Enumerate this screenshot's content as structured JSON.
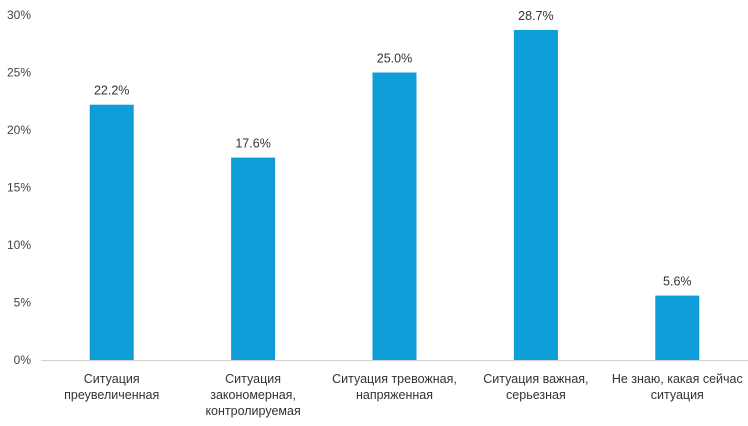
{
  "chart_data": {
    "type": "bar",
    "categories": [
      [
        "Ситуация",
        "преувеличенная"
      ],
      [
        "Ситуация",
        "закономерная,",
        "контролируемая"
      ],
      [
        "Ситуация тревожная,",
        "напряженная"
      ],
      [
        "Ситуация важная,",
        "серьезная"
      ],
      [
        "Не знаю, какая сейчас",
        "ситуация"
      ]
    ],
    "values": [
      22.2,
      17.6,
      25.0,
      28.7,
      5.6
    ],
    "data_labels": [
      "22.2%",
      "17.6%",
      "25.0%",
      "28.7%",
      "5.6%"
    ],
    "y_ticks": [
      0,
      5,
      10,
      15,
      20,
      25,
      30
    ],
    "y_tick_labels": [
      "0%",
      "5%",
      "10%",
      "15%",
      "20%",
      "25%",
      "30%"
    ],
    "ylim": [
      0,
      30
    ],
    "title": "",
    "xlabel": "",
    "ylabel": "",
    "grid": false,
    "legend": "none",
    "colors": {
      "bar": "#0E9DD6",
      "axis": "#D0D0D0"
    }
  }
}
